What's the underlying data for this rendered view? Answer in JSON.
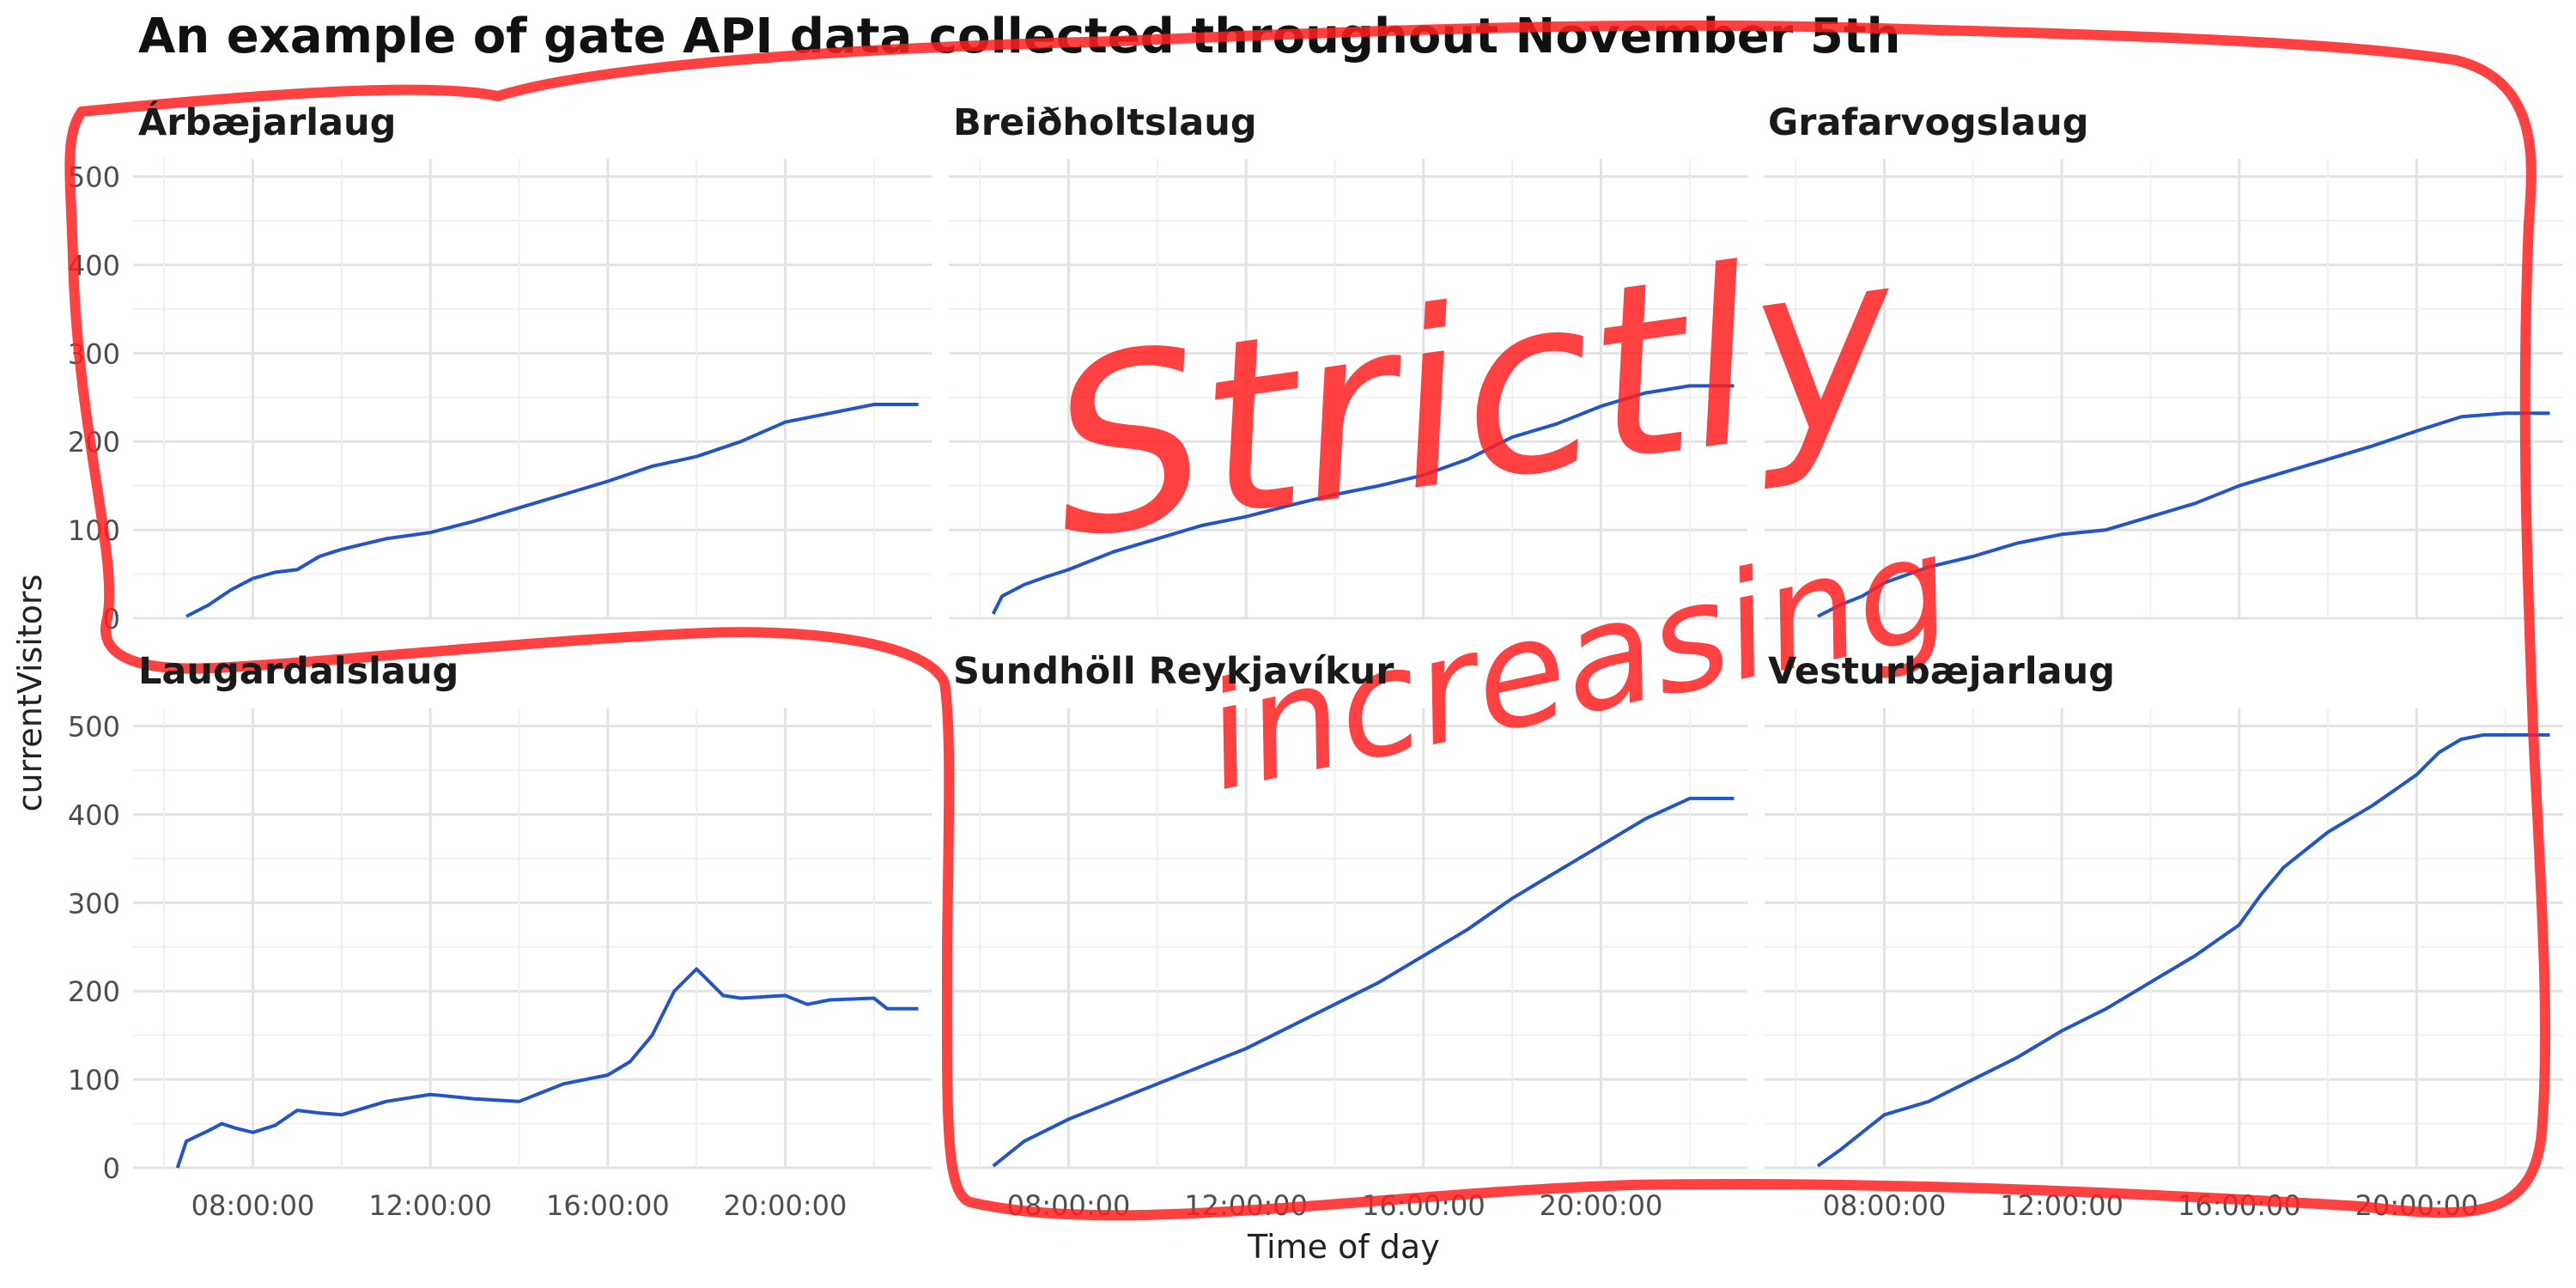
{
  "title": "An example of gate API data collected throughout November 5th",
  "annotation": {
    "line1": "Strictly",
    "line2": "increasing",
    "color": "#ff2020"
  },
  "chart_data": {
    "type": "line",
    "xlabel": "Time of day",
    "ylabel": "currentVisitors",
    "x_ticks": [
      "08:00:00",
      "12:00:00",
      "16:00:00",
      "20:00:00"
    ],
    "x_range_hours": [
      5.3,
      23.3
    ],
    "ylim": [
      0,
      520
    ],
    "y_ticks": [
      0,
      100,
      200,
      300,
      400,
      500
    ],
    "grid": true,
    "line_color": "#2255cc",
    "panels": [
      {
        "name": "Árbæjarlaug",
        "x": [
          6.5,
          7,
          7.5,
          8,
          8.5,
          9,
          9.5,
          10,
          11,
          12,
          13,
          14,
          15,
          16,
          17,
          18,
          19,
          20,
          21,
          22,
          23
        ],
        "y": [
          2,
          15,
          32,
          45,
          52,
          55,
          70,
          78,
          90,
          97,
          110,
          125,
          140,
          155,
          172,
          183,
          200,
          222,
          232,
          242,
          242
        ]
      },
      {
        "name": "Breiðholtslaug",
        "x": [
          6.3,
          6.5,
          7,
          7.5,
          8,
          8.5,
          9,
          10,
          11,
          12,
          13,
          14,
          15,
          16,
          17,
          18,
          19,
          20,
          21,
          22,
          23
        ],
        "y": [
          5,
          25,
          38,
          47,
          55,
          65,
          75,
          90,
          105,
          115,
          128,
          140,
          150,
          162,
          180,
          205,
          220,
          240,
          255,
          263,
          263
        ]
      },
      {
        "name": "Grafarvogslaug",
        "x": [
          6.5,
          7,
          7.5,
          8,
          9,
          10,
          11,
          12,
          13,
          14,
          15,
          16,
          17,
          18,
          19,
          20,
          21,
          22,
          23
        ],
        "y": [
          2,
          15,
          25,
          40,
          58,
          70,
          85,
          95,
          100,
          115,
          130,
          150,
          165,
          180,
          195,
          212,
          228,
          232,
          232
        ]
      },
      {
        "name": "Laugardalslaug",
        "x": [
          6.3,
          6.5,
          7,
          7.3,
          7.6,
          8,
          8.5,
          9,
          9.5,
          10,
          11,
          12,
          13,
          14,
          15,
          16,
          16.5,
          17,
          17.5,
          17.8,
          18,
          18.3,
          18.6,
          19,
          20,
          20.5,
          21,
          22,
          22.3,
          23
        ],
        "y": [
          0,
          30,
          42,
          50,
          45,
          40,
          48,
          65,
          62,
          60,
          75,
          83,
          78,
          75,
          95,
          105,
          120,
          150,
          200,
          215,
          225,
          210,
          195,
          192,
          195,
          185,
          190,
          192,
          180,
          180
        ]
      },
      {
        "name": "Sundhöll Reykjavíkur",
        "x": [
          6.3,
          7,
          8,
          9,
          10,
          11,
          12,
          13,
          14,
          15,
          16,
          17,
          18,
          19,
          20,
          21,
          22,
          23
        ],
        "y": [
          2,
          30,
          55,
          75,
          95,
          115,
          135,
          160,
          185,
          210,
          240,
          270,
          305,
          335,
          365,
          395,
          418,
          418
        ]
      },
      {
        "name": "Vesturbæjarlaug",
        "x": [
          6.5,
          7,
          7.5,
          8,
          9,
          10,
          11,
          12,
          13,
          14,
          15,
          16,
          16.5,
          17,
          18,
          19,
          20,
          20.5,
          21,
          21.5,
          22,
          23
        ],
        "y": [
          2,
          20,
          40,
          60,
          75,
          100,
          125,
          155,
          180,
          210,
          240,
          275,
          310,
          340,
          380,
          410,
          445,
          470,
          485,
          490,
          490,
          490
        ]
      }
    ]
  }
}
